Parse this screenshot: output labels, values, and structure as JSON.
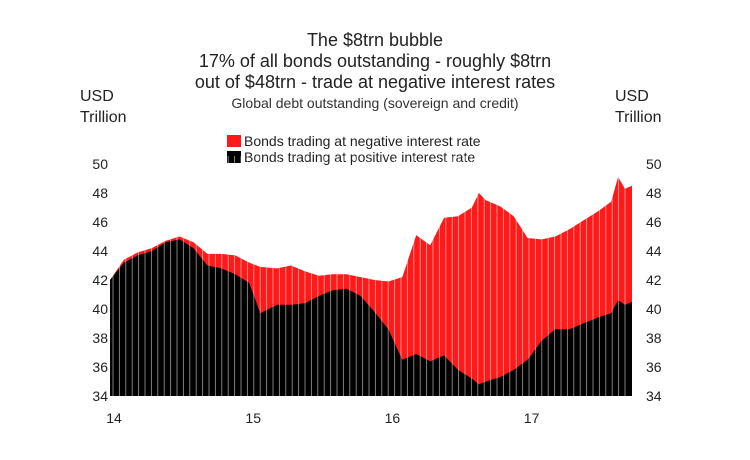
{
  "chart_data": {
    "type": "area",
    "title": "The $8trn bubble",
    "title_lines": [
      "17% of all bonds outstanding - roughly $8trn",
      "out of $48trn - trade at negative interest rates"
    ],
    "subtitle": "Global debt outstanding (sovereign and credit)",
    "ylabel_left": [
      "USD",
      "Trillion"
    ],
    "ylabel_right": [
      "USD",
      "Trillion"
    ],
    "ylim": [
      34,
      50
    ],
    "yticks": [
      34,
      36,
      38,
      40,
      42,
      44,
      46,
      48,
      50
    ],
    "xticks": [
      "14",
      "15",
      "16",
      "17"
    ],
    "xtick_positions": [
      2014.0,
      2015.0,
      2016.0,
      2017.0
    ],
    "xlim": [
      2014.0,
      2017.75
    ],
    "grid": false,
    "legend_placement": "top-center",
    "x": [
      2014.0,
      2014.1,
      2014.2,
      2014.3,
      2014.4,
      2014.5,
      2014.6,
      2014.7,
      2014.8,
      2014.9,
      2015.0,
      2015.08,
      2015.2,
      2015.3,
      2015.4,
      2015.5,
      2015.6,
      2015.7,
      2015.8,
      2015.9,
      2016.0,
      2016.1,
      2016.2,
      2016.3,
      2016.4,
      2016.5,
      2016.6,
      2016.65,
      2016.7,
      2016.8,
      2016.9,
      2017.0,
      2017.1,
      2017.2,
      2017.3,
      2017.4,
      2017.5,
      2017.6,
      2017.65,
      2017.7,
      2017.75
    ],
    "series": [
      {
        "name": "Bonds trading at negative interest rate",
        "color": "#ff1a1a",
        "values": [
          0.0,
          0.2,
          0.2,
          0.2,
          0.1,
          0.2,
          0.4,
          0.8,
          1.0,
          1.3,
          1.4,
          3.2,
          2.5,
          2.7,
          2.2,
          1.4,
          1.1,
          1.0,
          1.3,
          2.2,
          3.3,
          5.7,
          8.2,
          8.0,
          9.5,
          10.6,
          11.8,
          13.2,
          12.5,
          11.8,
          10.6,
          8.4,
          7.0,
          6.4,
          6.9,
          7.1,
          7.3,
          7.7,
          8.5,
          8.0,
          8.0
        ]
      },
      {
        "name": "Bonds trading at positive interest rate",
        "color": "#000000",
        "values": [
          42.0,
          43.2,
          43.7,
          44.0,
          44.6,
          44.8,
          44.2,
          43.0,
          42.8,
          42.4,
          41.8,
          39.7,
          40.3,
          40.3,
          40.4,
          40.9,
          41.3,
          41.4,
          40.9,
          39.8,
          38.6,
          36.5,
          36.9,
          36.4,
          36.8,
          35.8,
          35.2,
          34.8,
          35.0,
          35.3,
          35.8,
          36.5,
          37.8,
          38.6,
          38.6,
          39.0,
          39.4,
          39.7,
          40.6,
          40.3,
          40.5
        ]
      }
    ]
  }
}
